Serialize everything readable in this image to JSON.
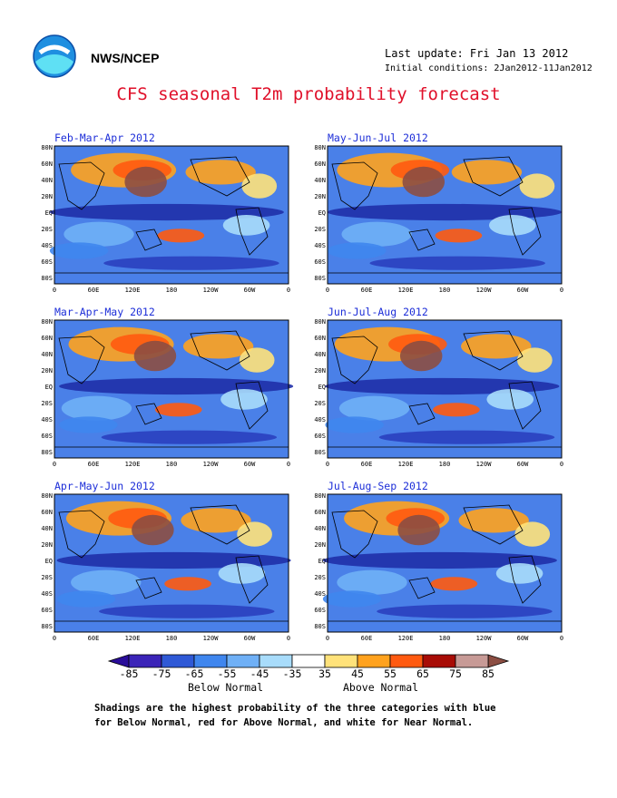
{
  "header": {
    "org": "NWS/NCEP",
    "last_update": "Last update: Fri Jan 13 2012",
    "initial_conditions": "Initial conditions: 2Jan2012-11Jan2012",
    "logo_icon": "noaa-logo-icon"
  },
  "title": "CFS seasonal T2m probability forecast",
  "panels": [
    {
      "title": "Feb-Mar-Apr 2012"
    },
    {
      "title": "May-Jun-Jul 2012"
    },
    {
      "title": "Mar-Apr-May 2012"
    },
    {
      "title": "Jun-Jul-Aug 2012"
    },
    {
      "title": "Apr-May-Jun 2012"
    },
    {
      "title": "Jul-Aug-Sep 2012"
    }
  ],
  "axes": {
    "lat_labels": [
      "80N",
      "60N",
      "40N",
      "20N",
      "EQ",
      "20S",
      "40S",
      "60S",
      "80S"
    ],
    "lon_labels": [
      "0",
      "60E",
      "120E",
      "180",
      "120W",
      "60W",
      "0"
    ]
  },
  "colorbar": {
    "labels": [
      "-85",
      "-75",
      "-65",
      "-55",
      "-45",
      "-35",
      "35",
      "45",
      "55",
      "65",
      "75",
      "85"
    ],
    "colors": [
      "#3b24b8",
      "#2f59d6",
      "#3f86ee",
      "#6fb0f6",
      "#a8dcfb",
      "#ffffff",
      "#ffe27a",
      "#ffa21e",
      "#ff5a10",
      "#a80c06",
      "#c79a96"
    ],
    "end_left_color": "#2a0d9a",
    "end_right_color": "#8c4e43",
    "below_label": "Below Normal",
    "above_label": "Above Normal"
  },
  "footnote": {
    "line1": "Shadings are the highest probability of the three categories with blue",
    "line2": "for Below Normal, red for Above Normal, and white for Near Normal."
  }
}
